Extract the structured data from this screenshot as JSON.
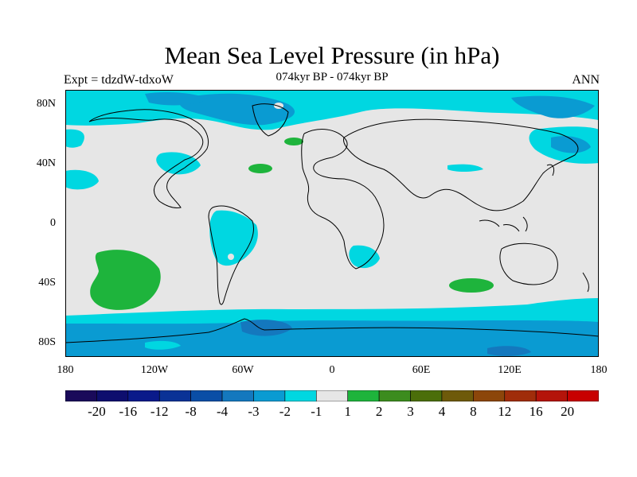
{
  "title": "Mean Sea Level Pressure (in hPa)",
  "subtitle": "074kyr BP - 074kyr BP",
  "left_label": "Expt = tdzdW-tdxoW",
  "right_label": "ANN",
  "lat_labels": [
    "80N",
    "40N",
    "0",
    "40S",
    "80S"
  ],
  "lon_labels": [
    "180",
    "120W",
    "60W",
    "0",
    "60E",
    "120E",
    "180"
  ],
  "colorbar": {
    "colors": [
      "#1a0a5a",
      "#0e0e6e",
      "#0a1a8a",
      "#0a3296",
      "#0a4ea6",
      "#1478be",
      "#0a9bd2",
      "#00d7e1",
      "#e6e6e6",
      "#1eb43c",
      "#3c8c1e",
      "#4b6e0a",
      "#6e5a0a",
      "#8c460a",
      "#a02d0a",
      "#b4140a",
      "#c80000"
    ],
    "labels": [
      "-20",
      "-16",
      "-12",
      "-8",
      "-4",
      "-3",
      "-2",
      "-1",
      "1",
      "2",
      "3",
      "4",
      "8",
      "12",
      "16",
      "20"
    ]
  },
  "map_colors": {
    "land": "#e6e6e6",
    "neg1": "#00d7e1",
    "neg2": "#0a9bd2",
    "neg3": "#1478be",
    "pos1": "#1eb43c",
    "coast": "#000000"
  }
}
